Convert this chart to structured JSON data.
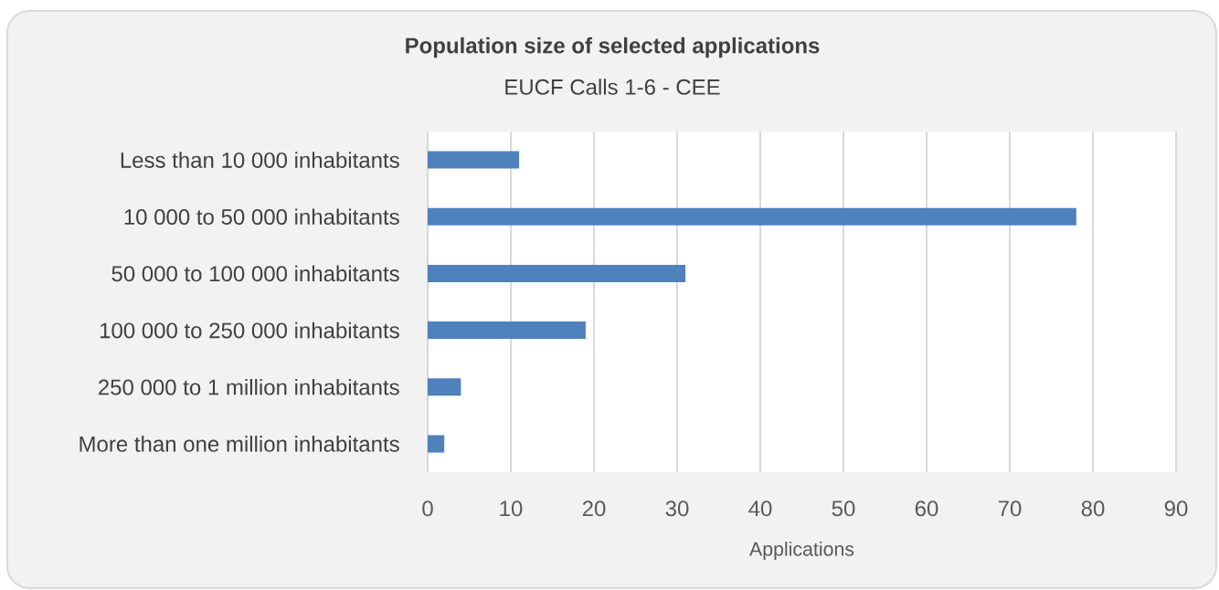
{
  "chart_data": {
    "type": "bar",
    "orientation": "horizontal",
    "title": "Population size of selected applications",
    "subtitle": "EUCF Calls 1-6 - CEE",
    "xlabel": "Applications",
    "categories": [
      "Less than 10 000 inhabitants",
      "10 000 to 50 000 inhabitants",
      "50 000 to 100 000 inhabitants",
      "100 000 to 250 000 inhabitants",
      "250 000 to 1 million inhabitants",
      "More than one million inhabitants"
    ],
    "values": [
      11,
      78,
      31,
      19,
      4,
      2
    ],
    "color": "#4f81bd",
    "xlim": [
      0,
      90
    ],
    "xticks": [
      0,
      10,
      20,
      30,
      40,
      50,
      60,
      70,
      80,
      90
    ],
    "grid": "x"
  }
}
